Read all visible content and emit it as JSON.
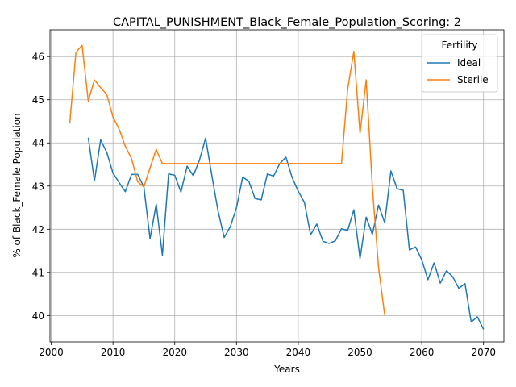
{
  "chart_data": {
    "type": "line",
    "title": "CAPITAL_PUNISHMENT_Black_Female_Population_Scoring: 2",
    "xlabel": "Years",
    "ylabel": "% of Black_Female Population",
    "xlim": [
      1999.8,
      2073.3
    ],
    "ylim": [
      39.39,
      46.62
    ],
    "x_ticks": [
      2000,
      2010,
      2020,
      2030,
      2040,
      2050,
      2060,
      2070
    ],
    "y_ticks": [
      40,
      41,
      42,
      43,
      44,
      45,
      46
    ],
    "grid": true,
    "legend": {
      "title": "Fertility",
      "placement": "top-right"
    },
    "series": [
      {
        "name": "Ideal",
        "color": "#1f77b4",
        "x": [
          2006,
          2007,
          2008,
          2009,
          2010,
          2011,
          2012,
          2013,
          2014,
          2015,
          2016,
          2017,
          2018,
          2019,
          2020,
          2021,
          2022,
          2023,
          2024,
          2025,
          2026,
          2027,
          2028,
          2029,
          2030,
          2031,
          2032,
          2033,
          2034,
          2035,
          2036,
          2037,
          2038,
          2039,
          2040,
          2041,
          2042,
          2043,
          2044,
          2045,
          2046,
          2047,
          2048,
          2049,
          2050,
          2051,
          2052,
          2053,
          2054,
          2055,
          2056,
          2057,
          2058,
          2059,
          2060,
          2061,
          2062,
          2063,
          2064,
          2065,
          2066,
          2067,
          2068,
          2069,
          2070
        ],
        "values": [
          44.12,
          43.12,
          44.07,
          43.78,
          43.3,
          43.08,
          42.87,
          43.27,
          43.27,
          42.98,
          41.78,
          42.58,
          41.4,
          43.28,
          43.25,
          42.86,
          43.46,
          43.24,
          43.6,
          44.11,
          43.25,
          42.43,
          41.81,
          42.06,
          42.5,
          43.21,
          43.11,
          42.71,
          42.68,
          43.28,
          43.23,
          43.52,
          43.67,
          43.2,
          42.88,
          42.62,
          41.87,
          42.12,
          41.72,
          41.67,
          41.73,
          42.01,
          41.97,
          42.45,
          41.32,
          42.28,
          41.88,
          42.56,
          42.15,
          43.35,
          42.94,
          42.9,
          41.52,
          41.59,
          41.29,
          40.83,
          41.22,
          40.75,
          41.04,
          40.9,
          40.63,
          40.74,
          39.85,
          39.97,
          39.68
        ]
      },
      {
        "name": "Sterile",
        "color": "#ff7f0e",
        "x": [
          2003,
          2004,
          2005,
          2006,
          2007,
          2008,
          2009,
          2010,
          2011,
          2012,
          2013,
          2014,
          2015,
          2016,
          2017,
          2018,
          2019,
          2020,
          2021,
          2022,
          2023,
          2024,
          2025,
          2026,
          2027,
          2028,
          2029,
          2030,
          2031,
          2032,
          2033,
          2034,
          2035,
          2036,
          2037,
          2038,
          2039,
          2040,
          2041,
          2042,
          2043,
          2044,
          2045,
          2046,
          2047,
          2048,
          2049,
          2050,
          2051,
          2052,
          2053,
          2054
        ],
        "values": [
          44.45,
          46.1,
          46.26,
          44.97,
          45.46,
          45.28,
          45.12,
          44.6,
          44.32,
          43.92,
          43.64,
          43.1,
          42.98,
          43.42,
          43.85,
          43.52,
          43.52,
          43.52,
          43.52,
          43.52,
          43.52,
          43.52,
          43.52,
          43.52,
          43.52,
          43.52,
          43.52,
          43.52,
          43.52,
          43.52,
          43.52,
          43.52,
          43.52,
          43.52,
          43.52,
          43.52,
          43.52,
          43.52,
          43.52,
          43.52,
          43.52,
          43.52,
          43.52,
          43.52,
          43.52,
          45.25,
          46.12,
          44.22,
          45.46,
          42.98,
          41.11,
          40.01
        ]
      }
    ]
  }
}
